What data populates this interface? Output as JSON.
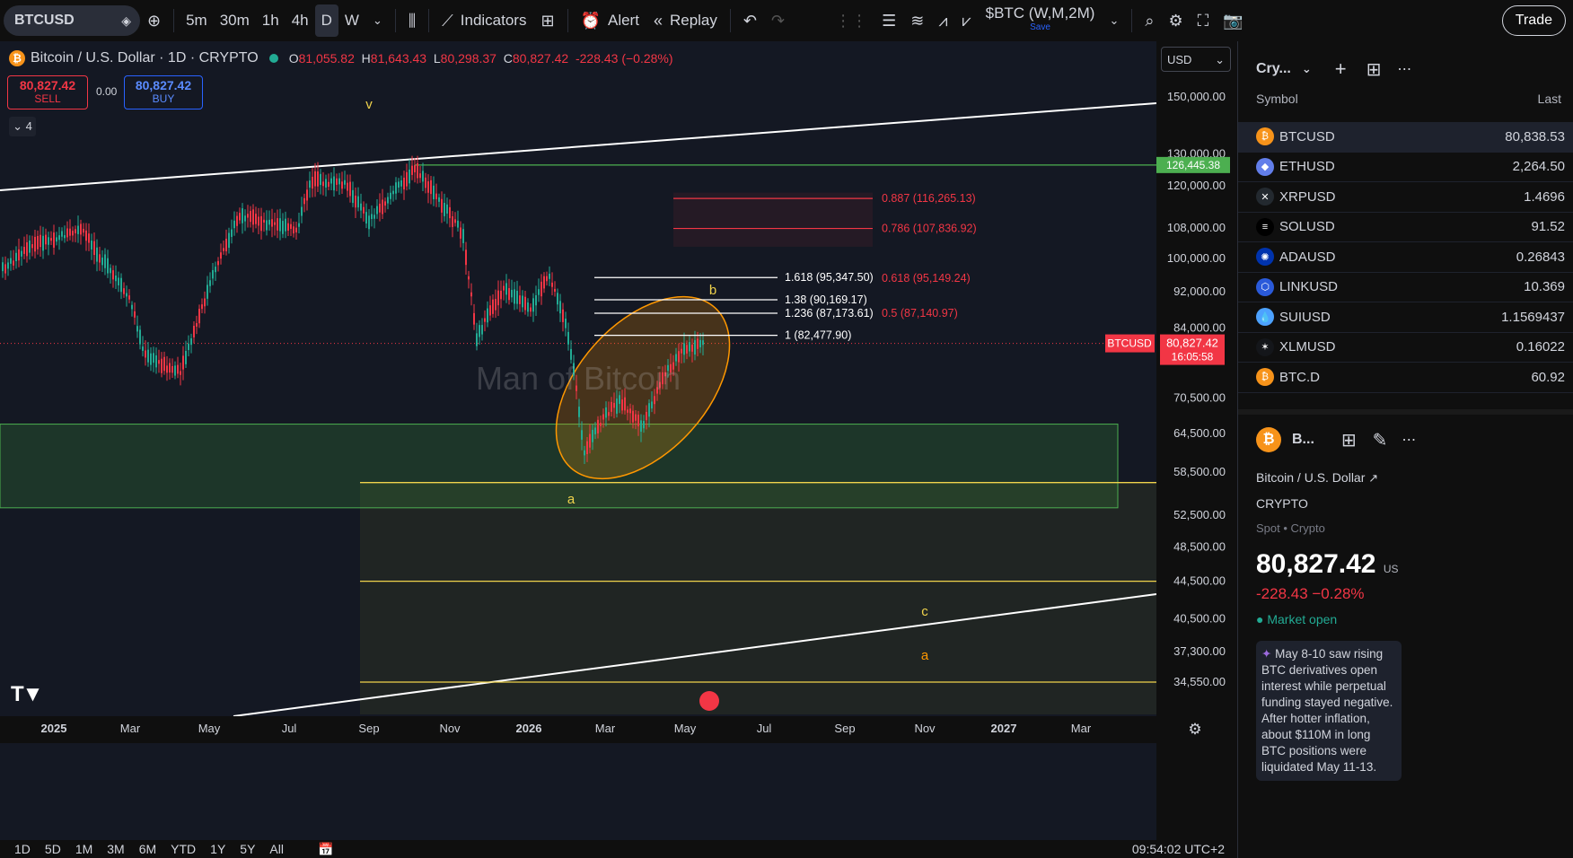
{
  "toolbar": {
    "symbol": "BTCUSD",
    "timeframes": [
      "5m",
      "30m",
      "1h",
      "4h",
      "D",
      "W"
    ],
    "active_timeframe": "D",
    "indicators_label": "Indicators",
    "alert_label": "Alert",
    "replay_label": "Replay",
    "layout_name": "$BTC (W,M,2M)",
    "save_label": "Save",
    "trade_label": "Trade"
  },
  "legend": {
    "title": "Bitcoin / U.S. Dollar · 1D · CRYPTO",
    "o_label": "O",
    "o": "81,055.82",
    "h_label": "H",
    "h": "81,643.43",
    "l_label": "L",
    "l": "80,298.37",
    "c_label": "C",
    "c": "80,827.42",
    "change": "-228.43 (−0.28%)",
    "sell_price": "80,827.42",
    "sell_label": "SELL",
    "spread": "0.00",
    "buy_price": "80,827.42",
    "buy_label": "BUY",
    "layers": "4",
    "currency": "USD"
  },
  "chart_data": {
    "type": "candlestick",
    "price_axis": [
      "150,000.00",
      "130,000.00",
      "120,000.00",
      "108,000.00",
      "100,000.00",
      "92,000.00",
      "84,000.00",
      "70,500.00",
      "64,500.00",
      "58,500.00",
      "52,500.00",
      "48,500.00",
      "44,500.00",
      "40,500.00",
      "37,300.00",
      "34,550.00"
    ],
    "time_axis": [
      "2025",
      "Mar",
      "May",
      "Jul",
      "Sep",
      "Nov",
      "2026",
      "Mar",
      "May",
      "Jul",
      "Sep",
      "Nov",
      "2027",
      "Mar"
    ],
    "high_marker": "126,445.38",
    "current_price": "80,827.42",
    "countdown": "16:05:58",
    "current_symbol": "BTCUSD",
    "fib_levels": [
      {
        "label": "0.887 (116,265.13)",
        "price": 116265
      },
      {
        "label": "0.786 (107,836.92)",
        "price": 107837
      },
      {
        "label": "1.618 (95,347.50)",
        "price": 95347
      },
      {
        "label": "0.618 (95,149.24)",
        "price": 95149
      },
      {
        "label": "1.38 (90,169.17)",
        "price": 90169
      },
      {
        "label": "1.236 (87,173.61)",
        "price": 87174
      },
      {
        "label": "0.5 (87,140.97)",
        "price": 87141
      },
      {
        "label": "1 (82,477.90)",
        "price": 82478
      }
    ],
    "wave_labels": [
      "v",
      "b",
      "a",
      "c",
      "a"
    ],
    "watermark": "Man of Bitcoin"
  },
  "watchlist": {
    "title": "Cry...",
    "col_symbol": "Symbol",
    "col_last": "Last",
    "items": [
      {
        "symbol": "BTCUSD",
        "last": "80,838.53",
        "color": "#f7931a",
        "glyph": "₿"
      },
      {
        "symbol": "ETHUSD",
        "last": "2,264.50",
        "color": "#627eea",
        "glyph": "◆"
      },
      {
        "symbol": "XRPUSD",
        "last": "1.4696",
        "color": "#23292f",
        "glyph": "✕"
      },
      {
        "symbol": "SOLUSD",
        "last": "91.52",
        "color": "#000000",
        "glyph": "≡"
      },
      {
        "symbol": "ADAUSD",
        "last": "0.26843",
        "color": "#0033ad",
        "glyph": "✺"
      },
      {
        "symbol": "LINKUSD",
        "last": "10.369",
        "color": "#2a5ada",
        "glyph": "⬡"
      },
      {
        "symbol": "SUIUSD",
        "last": "1.1569437",
        "color": "#4da2ff",
        "glyph": "💧"
      },
      {
        "symbol": "XLMUSD",
        "last": "0.16022",
        "color": "#14161a",
        "glyph": "✶"
      },
      {
        "symbol": "BTC.D",
        "last": "60.92",
        "color": "#f7931a",
        "glyph": "₿"
      }
    ]
  },
  "detail": {
    "short": "B...",
    "name": "Bitcoin / U.S. Dollar",
    "exchange": "CRYPTO",
    "type": "Spot • Crypto",
    "price": "80,827.42",
    "currency": "US",
    "change": "-228.43  −0.28%",
    "market": "Market open",
    "news": "May 8-10 saw rising BTC derivatives open interest while perpetual funding stayed negative. After hotter inflation, about $110M in long BTC positions were liquidated May 11-13."
  },
  "bottom": {
    "ranges": [
      "1D",
      "5D",
      "1M",
      "3M",
      "6M",
      "YTD",
      "1Y",
      "5Y",
      "All"
    ],
    "clock": "09:54:02 UTC+2"
  }
}
